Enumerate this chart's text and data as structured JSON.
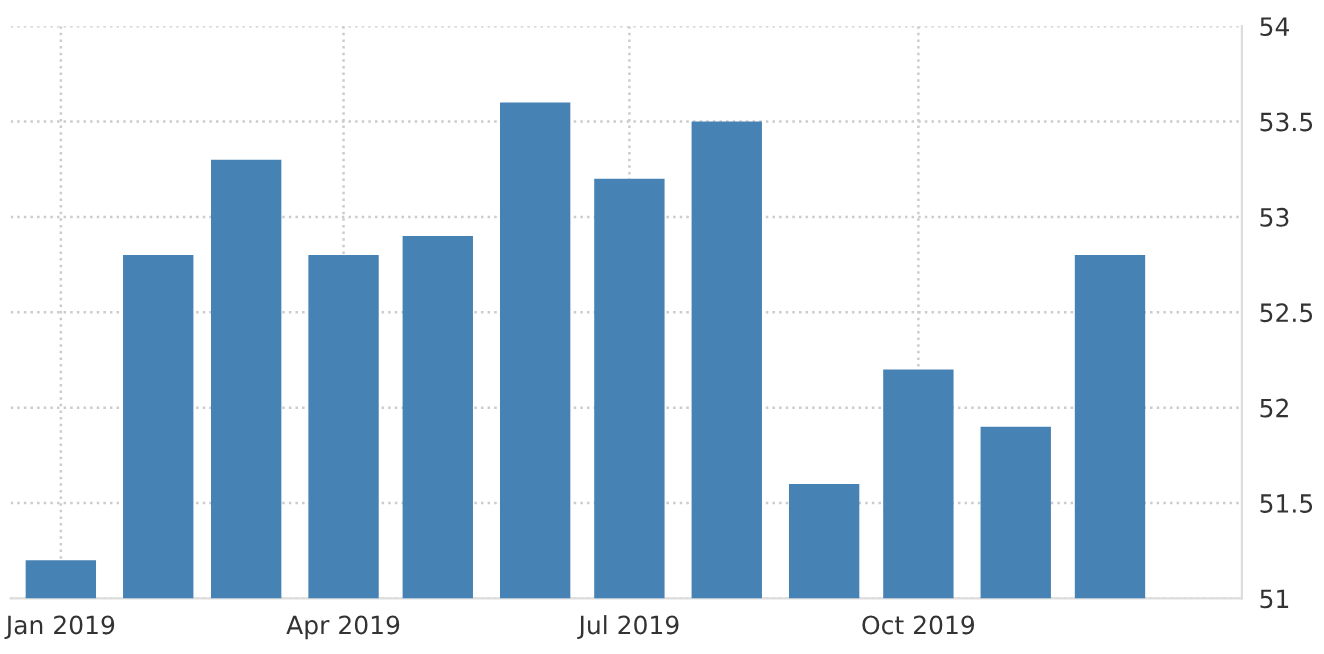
{
  "chart_data": {
    "type": "bar",
    "x": [
      "2019-01",
      "2019-02",
      "2019-03",
      "2019-04",
      "2019-05",
      "2019-06",
      "2019-07",
      "2019-08",
      "2019-09",
      "2019-10",
      "2019-11",
      "2019-12"
    ],
    "values": [
      51.2,
      52.8,
      53.3,
      52.8,
      52.9,
      53.6,
      53.2,
      53.5,
      51.6,
      52.2,
      51.9,
      52.8
    ],
    "color": "#4682b4",
    "ylim": [
      51,
      54
    ],
    "yticks": [
      51,
      51.5,
      52,
      52.5,
      53,
      53.5,
      54
    ],
    "xlim": [
      "2018-12-16",
      "2020-01-12"
    ],
    "xticks": [
      {
        "value": "2019-01",
        "label": "Jan 2019"
      },
      {
        "value": "2019-04",
        "label": "Apr 2019"
      },
      {
        "value": "2019-07",
        "label": "Jul 2019"
      },
      {
        "value": "2019-10",
        "label": "Oct 2019"
      }
    ],
    "grid": true
  }
}
